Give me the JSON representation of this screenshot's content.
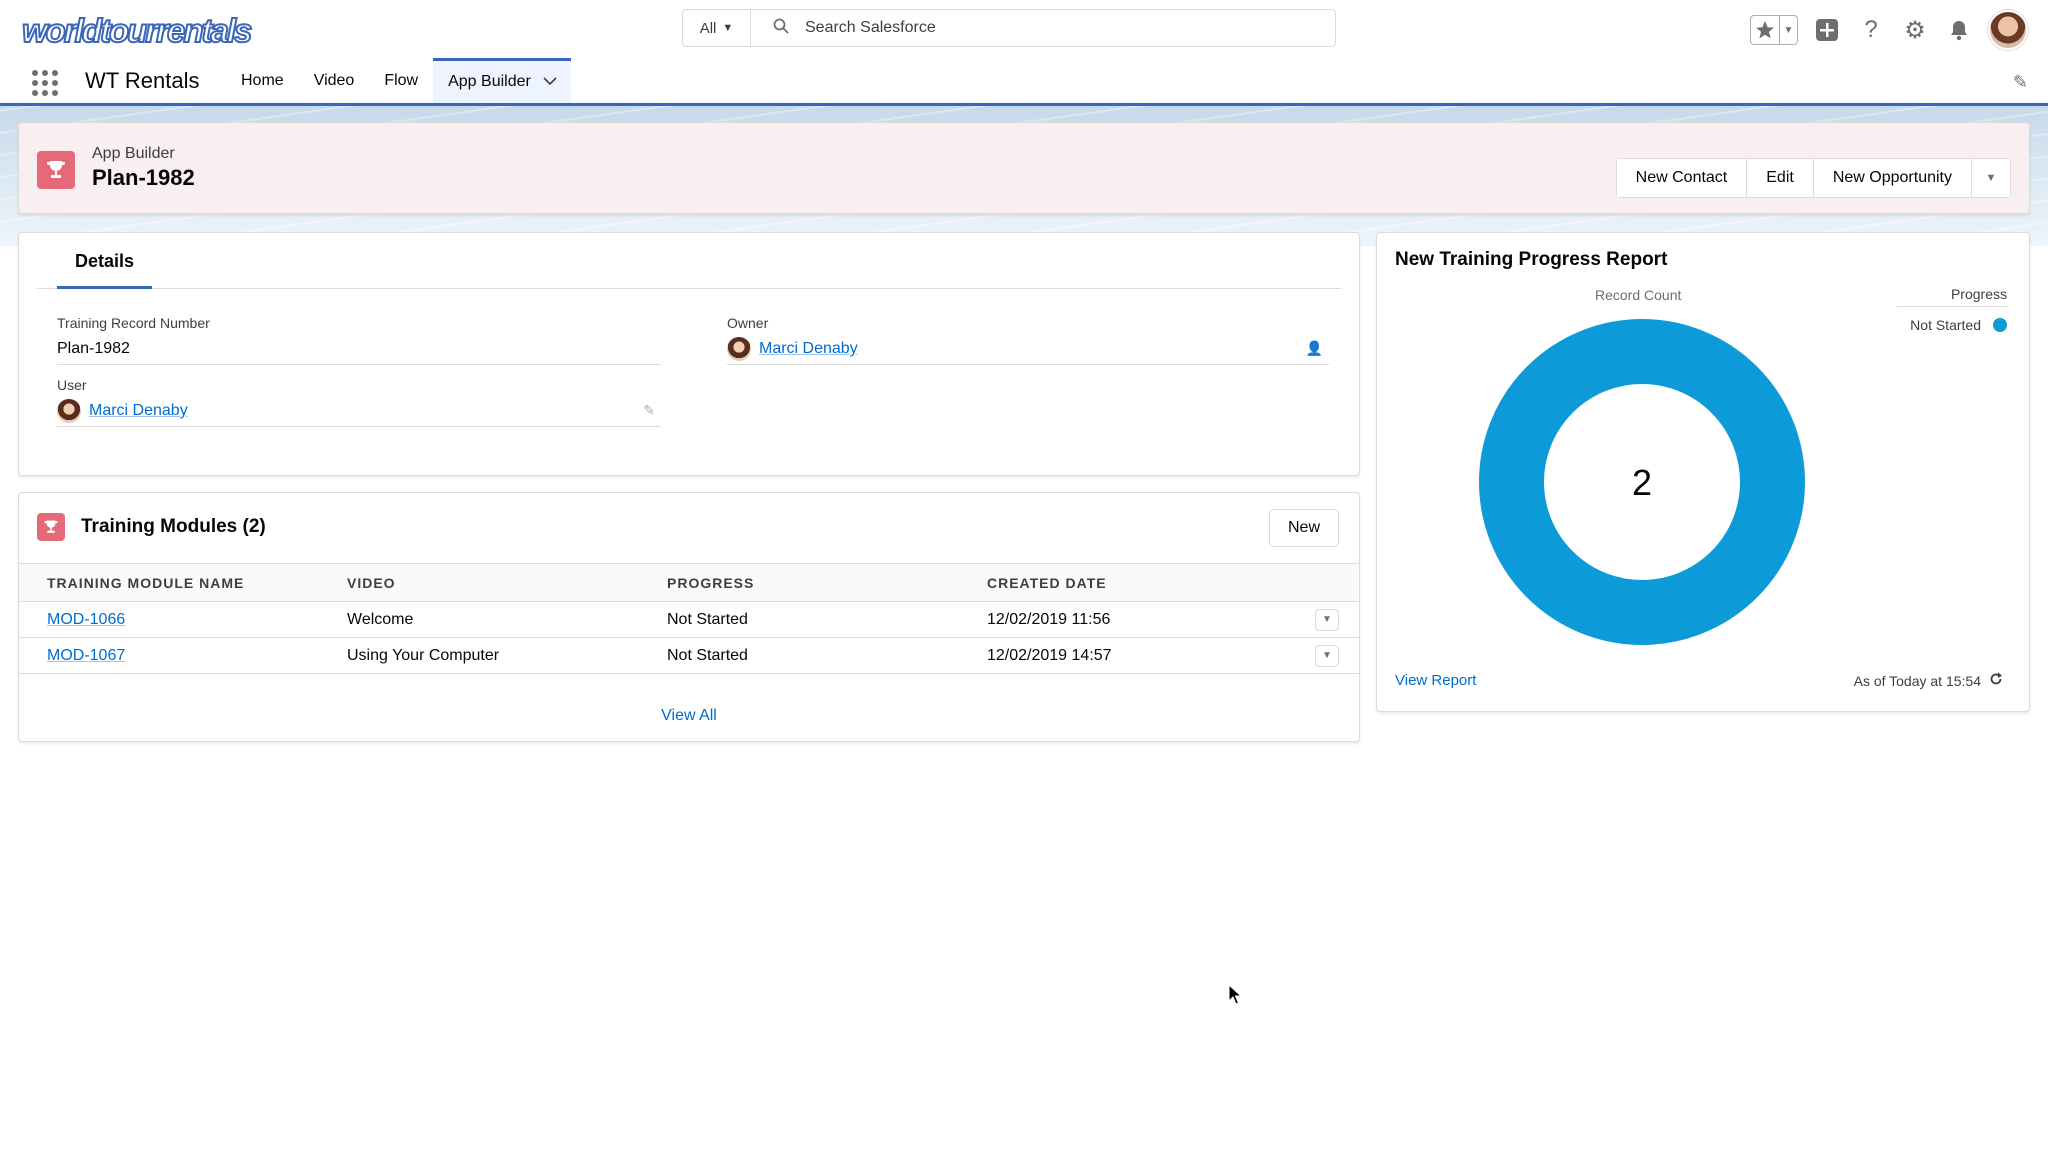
{
  "header": {
    "logo_text_a": "worldtour",
    "logo_text_b": "rentals",
    "search_scope": "All",
    "search_placeholder": "Search Salesforce",
    "icons": [
      "star-icon",
      "chevron-down-icon",
      "add-icon",
      "help-icon",
      "gear-icon",
      "bell-icon",
      "avatar"
    ]
  },
  "nav": {
    "app_name": "WT Rentals",
    "items": [
      {
        "label": "Home",
        "active": false
      },
      {
        "label": "Video",
        "active": false
      },
      {
        "label": "Flow",
        "active": false
      },
      {
        "label": "App Builder",
        "active": true
      }
    ]
  },
  "record": {
    "type_label": "App Builder",
    "title": "Plan-1982",
    "actions": [
      "New Contact",
      "Edit",
      "New Opportunity"
    ]
  },
  "details": {
    "tab_label": "Details",
    "fields": {
      "record_number_label": "Training Record Number",
      "record_number_value": "Plan-1982",
      "owner_label": "Owner",
      "owner_value": "Marci Denaby",
      "user_label": "User",
      "user_value": "Marci Denaby"
    }
  },
  "related": {
    "title": "Training Modules (2)",
    "new_label": "New",
    "columns": [
      "TRAINING MODULE NAME",
      "VIDEO",
      "PROGRESS",
      "CREATED DATE"
    ],
    "rows": [
      {
        "name": "MOD-1066",
        "video": "Welcome",
        "progress": "Not Started",
        "created": "12/02/2019 11:56"
      },
      {
        "name": "MOD-1067",
        "video": "Using Your Computer",
        "progress": "Not Started",
        "created": "12/02/2019 14:57"
      }
    ],
    "view_all": "View All"
  },
  "report": {
    "title": "New Training Progress Report",
    "link": "View Report",
    "as_of": "As of Today at 15:54"
  },
  "chart_data": {
    "type": "pie",
    "donut": true,
    "ylabel": "Record Count",
    "legend_title": "Progress",
    "legend_placement": "top-right",
    "categories": [
      "Not Started"
    ],
    "values": [
      2
    ],
    "center_label": "2",
    "colors": [
      "#0c9ad8"
    ]
  },
  "colors": {
    "brand": "#3a66b8",
    "link": "#006dcc",
    "record_icon": "#e56979",
    "donut": "#0c9ad8"
  }
}
